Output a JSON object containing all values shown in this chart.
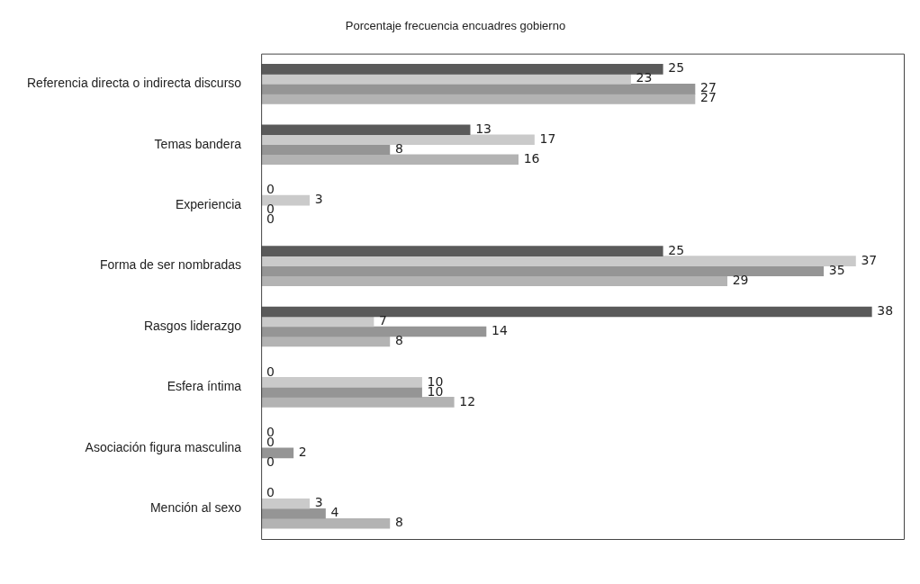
{
  "chart_data": {
    "type": "bar",
    "orientation": "horizontal",
    "title": "Porcentaje frecuencia encuadres gobierno",
    "categories": [
      "Referencia directa o indirecta discurso",
      "Temas bandera",
      "Experiencia",
      "Forma de ser nombradas",
      "Rasgos liderazgo",
      "Esfera íntima",
      "Asociación figura masculina",
      "Mención al sexo"
    ],
    "series": [
      {
        "color": "#5a5a5a",
        "values": [
          25,
          13,
          0,
          25,
          38,
          0,
          0,
          0
        ]
      },
      {
        "color": "#cacaca",
        "values": [
          23,
          17,
          3,
          37,
          7,
          10,
          0,
          3
        ]
      },
      {
        "color": "#959595",
        "values": [
          27,
          8,
          0,
          35,
          14,
          10,
          2,
          4
        ]
      },
      {
        "color": "#b3b3b3",
        "values": [
          27,
          16,
          0,
          29,
          8,
          12,
          0,
          8
        ]
      }
    ],
    "data_labels": true,
    "grid": false,
    "legend": false,
    "tick_labels": "y"
  }
}
